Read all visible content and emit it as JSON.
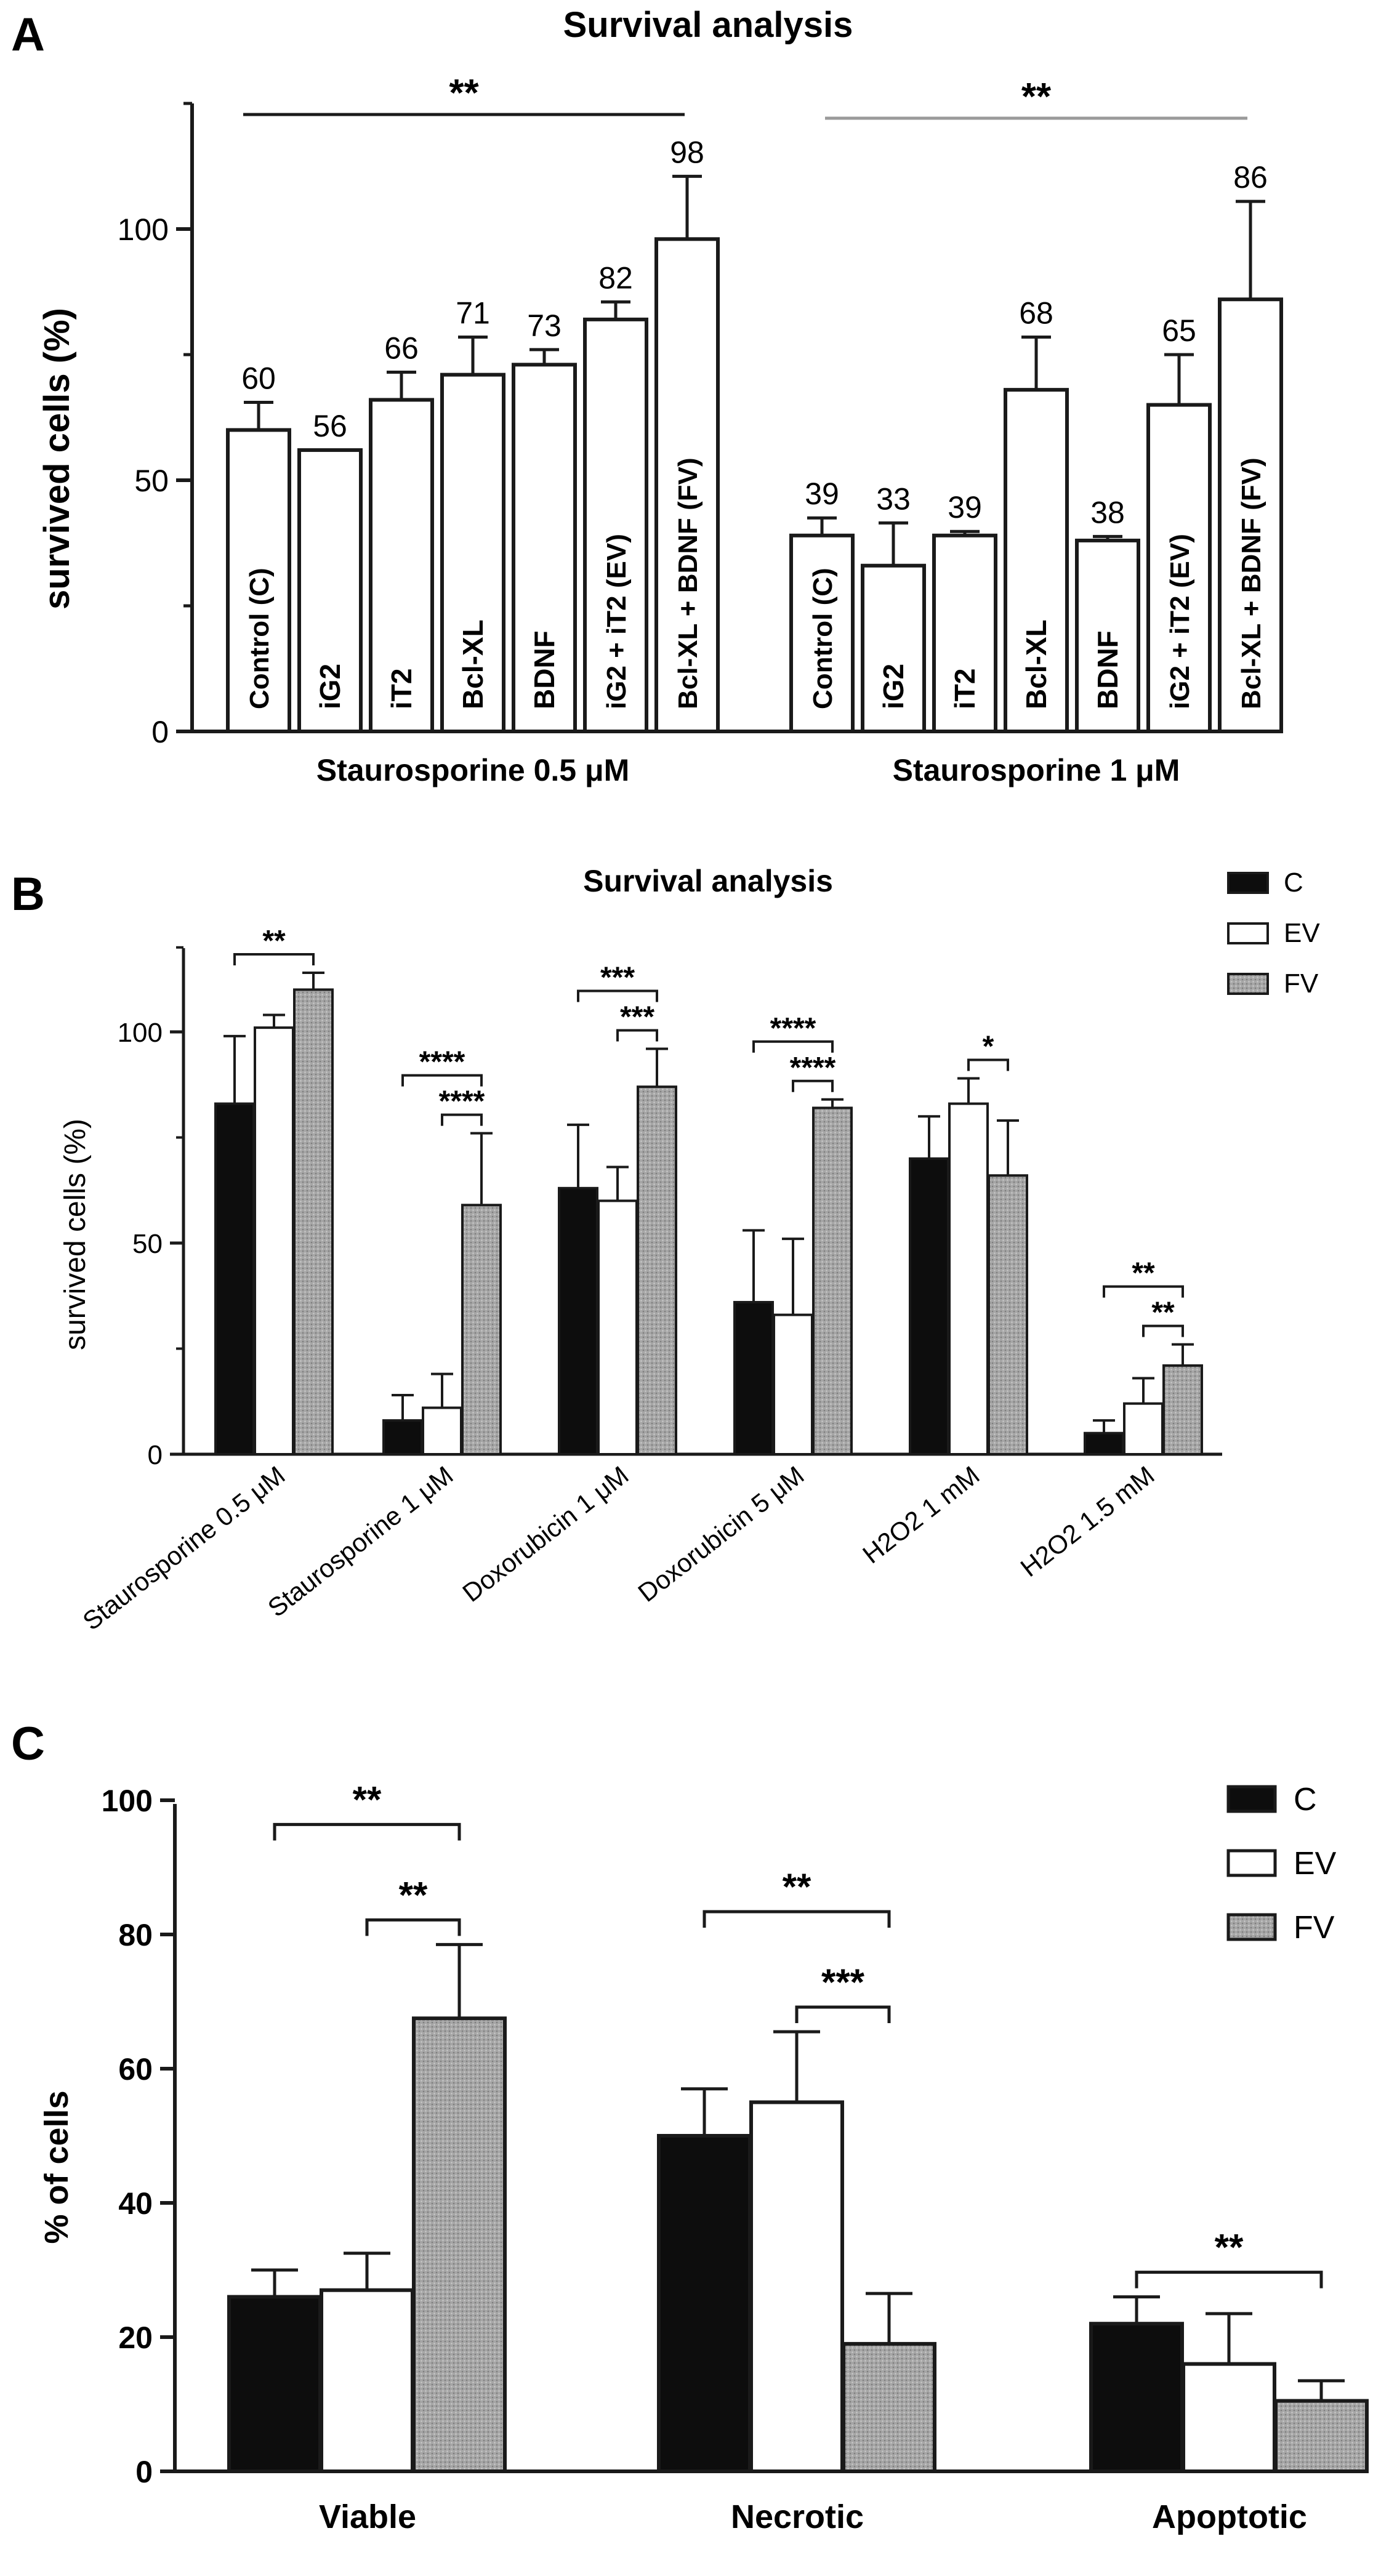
{
  "figure": {
    "panel_labels": [
      "A",
      "B",
      "C"
    ]
  },
  "colors": {
    "C": "#0d0d0d",
    "EV": "#ffffff",
    "FV": "#a6a6a6",
    "axis": "#1a1a1a",
    "barA": "#ffffff",
    "bracketA2": "#9a9a9a"
  },
  "chart_data": [
    {
      "panel": "A",
      "type": "bar",
      "title": "Survival analysis",
      "ylabel": "survived cells (%)",
      "ylim": [
        0,
        125
      ],
      "yticks": [
        0,
        50,
        100
      ],
      "groups": [
        {
          "label": "Staurosporine 0.5 μM",
          "categories": [
            "Control (C)",
            "iG2",
            "iT2",
            "Bcl-XL",
            "BDNF",
            "iG2 + iT2 (EV)",
            "Bcl-XL + BDNF (FV)"
          ],
          "values": [
            60,
            56,
            66,
            71,
            73,
            82,
            98
          ],
          "errors": [
            5.5,
            0,
            5.5,
            7.5,
            3,
            3.5,
            12.5
          ],
          "value_labels": [
            "60",
            "56",
            "66",
            "71",
            "73",
            "82",
            "98"
          ]
        },
        {
          "label": "Staurosporine 1 μM",
          "categories": [
            "Control (C)",
            "iG2",
            "iT2",
            "Bcl-XL",
            "BDNF",
            "iG2 + iT2 (EV)",
            "Bcl-XL + BDNF (FV)"
          ],
          "values": [
            39,
            33,
            39,
            68,
            38,
            65,
            86
          ],
          "errors": [
            3.5,
            8.5,
            0.8,
            10.5,
            0.8,
            10,
            19.5
          ],
          "value_labels": [
            "39",
            "33",
            "39",
            "68",
            "38",
            "65",
            "86"
          ]
        }
      ],
      "significance": [
        {
          "group": 0,
          "label": "**"
        },
        {
          "group": 1,
          "label": "**"
        }
      ]
    },
    {
      "panel": "B",
      "type": "bar",
      "title": "Survival analysis",
      "ylabel": "survived cells (%)",
      "ylim": [
        0,
        120
      ],
      "yticks": [
        0,
        50,
        100
      ],
      "categories": [
        "Staurosporine 0.5 μM",
        "Staurosporine 1 μM",
        "Doxorubicin 1 μM",
        "Doxorubicin 5 μM",
        "H2O2 1 mM",
        "H2O2 1.5 mM"
      ],
      "legend": [
        "C",
        "EV",
        "FV"
      ],
      "series": [
        {
          "name": "C",
          "values": [
            83,
            8,
            63,
            36,
            70,
            5
          ],
          "errors": [
            16,
            6,
            15,
            17,
            10,
            3
          ]
        },
        {
          "name": "EV",
          "values": [
            101,
            11,
            60,
            33,
            83,
            12
          ],
          "errors": [
            3,
            8,
            8,
            18,
            6,
            6
          ]
        },
        {
          "name": "FV",
          "values": [
            110,
            59,
            87,
            82,
            66,
            21
          ],
          "errors": [
            4,
            17,
            9,
            2,
            13,
            5
          ]
        }
      ],
      "significance": [
        {
          "category": 0,
          "from": 0,
          "to": 2,
          "label": "**",
          "level": 0
        },
        {
          "category": 1,
          "from": 0,
          "to": 2,
          "label": "****",
          "level": 1
        },
        {
          "category": 1,
          "from": 1,
          "to": 2,
          "label": "****",
          "level": 0
        },
        {
          "category": 2,
          "from": 0,
          "to": 2,
          "label": "***",
          "level": 1
        },
        {
          "category": 2,
          "from": 1,
          "to": 2,
          "label": "***",
          "level": 0
        },
        {
          "category": 3,
          "from": 0,
          "to": 2,
          "label": "****",
          "level": 1
        },
        {
          "category": 3,
          "from": 1,
          "to": 2,
          "label": "****",
          "level": 0
        },
        {
          "category": 4,
          "from": 1,
          "to": 2,
          "label": "*",
          "level": 0
        },
        {
          "category": 5,
          "from": 0,
          "to": 2,
          "label": "**",
          "level": 1
        },
        {
          "category": 5,
          "from": 1,
          "to": 2,
          "label": "**",
          "level": 0
        }
      ]
    },
    {
      "panel": "C",
      "type": "bar",
      "ylabel": "% of cells",
      "ylim": [
        0,
        100
      ],
      "yticks": [
        0,
        20,
        40,
        60,
        80,
        100
      ],
      "categories": [
        "Viable",
        "Necrotic",
        "Apoptotic"
      ],
      "legend": [
        "C",
        "EV",
        "FV"
      ],
      "series": [
        {
          "name": "C",
          "values": [
            26,
            50,
            22
          ],
          "errors": [
            4,
            7,
            4
          ]
        },
        {
          "name": "EV",
          "values": [
            27,
            55,
            16
          ],
          "errors": [
            5.5,
            10.5,
            7.5
          ]
        },
        {
          "name": "FV",
          "values": [
            67.5,
            19,
            10.5
          ],
          "errors": [
            11,
            7.5,
            3
          ]
        }
      ],
      "significance": [
        {
          "category": 0,
          "from": 0,
          "to": 2,
          "label": "**",
          "level": 1
        },
        {
          "category": 0,
          "from": 1,
          "to": 2,
          "label": "**",
          "level": 0
        },
        {
          "category": 1,
          "from": 0,
          "to": 2,
          "label": "**",
          "level": 1
        },
        {
          "category": 1,
          "from": 1,
          "to": 2,
          "label": "***",
          "level": 0
        },
        {
          "category": 2,
          "from": 0,
          "to": 2,
          "label": "**",
          "level": 0
        }
      ]
    }
  ]
}
